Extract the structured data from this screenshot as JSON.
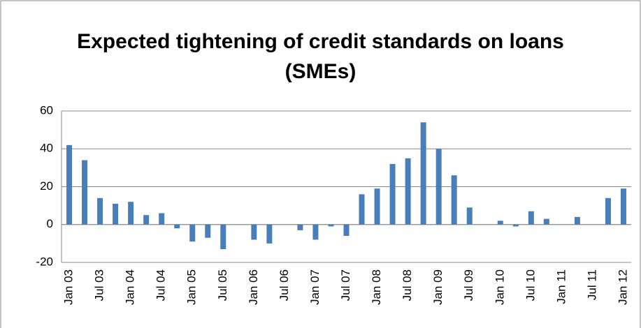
{
  "chart_data": {
    "type": "bar",
    "title": "Expected tightening of credit  standards on loans (SMEs)",
    "categories": [
      "Jan 03",
      null,
      "Jul 03",
      null,
      "Jan 04",
      null,
      "Jul 04",
      null,
      "Jan 05",
      null,
      "Jul 05",
      null,
      "Jan 06",
      null,
      "Jul 06",
      null,
      "Jan 07",
      null,
      "Jul 07",
      null,
      "Jan 08",
      null,
      "Jul 08",
      null,
      "Jan 09",
      null,
      "Jul 09",
      null,
      "Jan 10",
      null,
      "Jul 10",
      null,
      "Jan 11",
      null,
      "Jul 11",
      null,
      "Jan 12"
    ],
    "values": [
      42,
      34,
      14,
      11,
      12,
      5,
      6,
      -2,
      -9,
      -7,
      -13,
      0,
      -8,
      -10,
      0,
      -3,
      -8,
      -1,
      -6,
      16,
      19,
      32,
      35,
      54,
      40,
      26,
      9,
      0,
      2,
      -1,
      7,
      3,
      0,
      4,
      0,
      14,
      19
    ],
    "color": "#4a7ebb",
    "ylim": [
      -20,
      60
    ],
    "yticks": [
      -20,
      0,
      20,
      40,
      60
    ],
    "grid": true
  }
}
